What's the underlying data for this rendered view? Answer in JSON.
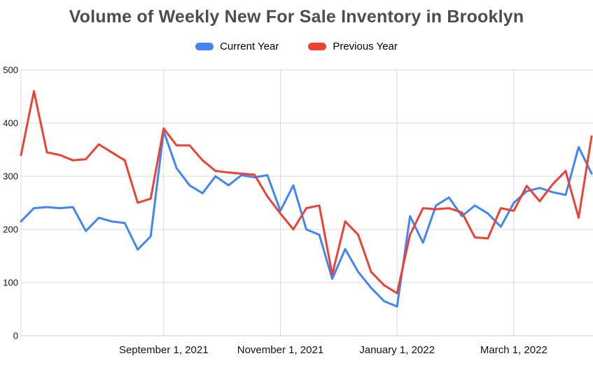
{
  "chart_data": {
    "type": "line",
    "title": "Volume of Weekly New For Sale Inventory in Brooklyn",
    "xlabel": "",
    "ylabel": "",
    "x_tick_labels": [
      "September 1, 2021",
      "November 1, 2021",
      "January 1, 2022",
      "March 1, 2022"
    ],
    "x_tick_indices": [
      11,
      20,
      29,
      38
    ],
    "y_ticks": [
      0,
      100,
      200,
      300,
      400,
      500
    ],
    "ylim": [
      0,
      500
    ],
    "grid": true,
    "legend_position": "top",
    "series": [
      {
        "name": "Current Year",
        "color": "#4285f4",
        "values": [
          215,
          240,
          242,
          240,
          242,
          197,
          222,
          215,
          212,
          162,
          187,
          385,
          315,
          283,
          268,
          300,
          283,
          302,
          298,
          302,
          235,
          283,
          200,
          190,
          107,
          163,
          120,
          90,
          65,
          55,
          225,
          175,
          245,
          260,
          225,
          245,
          230,
          205,
          250,
          272,
          278,
          270,
          265,
          355,
          305
        ]
      },
      {
        "name": "Previous Year",
        "color": "#ea4335",
        "values": [
          340,
          460,
          345,
          340,
          330,
          332,
          360,
          345,
          330,
          250,
          258,
          390,
          358,
          358,
          330,
          310,
          307,
          305,
          303,
          262,
          230,
          200,
          240,
          245,
          115,
          215,
          190,
          120,
          95,
          80,
          190,
          240,
          238,
          240,
          232,
          185,
          183,
          240,
          235,
          282,
          253,
          285,
          310,
          222,
          375
        ]
      }
    ]
  },
  "style": {
    "background_color": "#ffffff",
    "title_color": "#4d4d4d",
    "grid_color": "#d9d9d9",
    "axis_line_color": "#cccccc",
    "axis_label_color": "#111111",
    "line_width": 3
  }
}
